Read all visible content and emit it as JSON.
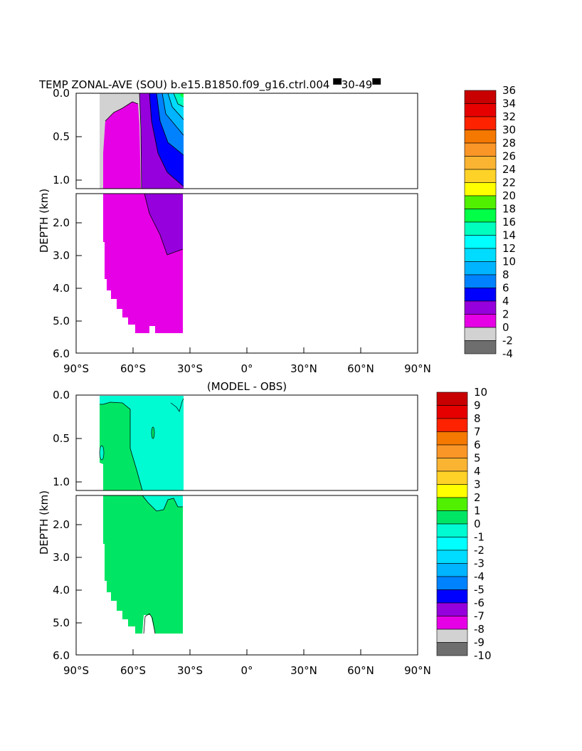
{
  "chart_data": [
    {
      "type": "heatmap",
      "title": "TEMP ZONAL-AVE (SOU) b.e15.B1850.f09_g16.ctrl.004 ▀30-49▀",
      "ylabel": "DEPTH (km)",
      "xlabel": "",
      "x_ticks": [
        "90°S",
        "60°S",
        "30°S",
        "0°",
        "30°N",
        "60°N",
        "90°N"
      ],
      "y_ticks_upper": [
        "0.0",
        "0.5",
        "1.0"
      ],
      "y_ticks_lower": [
        "2.0",
        "3.0",
        "4.0",
        "5.0",
        "6.0"
      ],
      "xlim": [
        -90,
        90
      ],
      "ylim_km": [
        0,
        6
      ],
      "upper_panel_depth_km": [
        0,
        1.1
      ],
      "lower_panel_depth_km": [
        1.1,
        6
      ],
      "colorbar": {
        "labels": [
          "36",
          "34",
          "32",
          "30",
          "28",
          "26",
          "24",
          "22",
          "20",
          "18",
          "16",
          "14",
          "12",
          "10",
          "8",
          "6",
          "4",
          "2",
          "0",
          "-2",
          "-4"
        ],
        "colors": [
          "#c80000",
          "#e60000",
          "#ff2200",
          "#f57800",
          "#fa9628",
          "#fab432",
          "#ffd228",
          "#ffff00",
          "#50f000",
          "#00ff46",
          "#00ffbe",
          "#00ffff",
          "#00dcff",
          "#00b4ff",
          "#0082ff",
          "#0000ff",
          "#9600dc",
          "#e600e6",
          "#d2d2d2",
          "#6e6e6e"
        ]
      },
      "data_extent": {
        "lon_min": -75,
        "lon_max": -34
      }
    },
    {
      "type": "heatmap",
      "title": "(MODEL - OBS)",
      "ylabel": "DEPTH (km)",
      "xlabel": "",
      "x_ticks": [
        "90°S",
        "60°S",
        "30°S",
        "0°",
        "30°N",
        "60°N",
        "90°N"
      ],
      "y_ticks_upper": [
        "0.0",
        "0.5",
        "1.0"
      ],
      "y_ticks_lower": [
        "2.0",
        "3.0",
        "4.0",
        "5.0",
        "6.0"
      ],
      "xlim": [
        -90,
        90
      ],
      "ylim_km": [
        0,
        6
      ],
      "colorbar": {
        "labels": [
          "10",
          "9",
          "8",
          "7",
          "6",
          "5",
          "4",
          "3",
          "2",
          "1",
          "0",
          "-1",
          "-2",
          "-3",
          "-4",
          "-5",
          "-6",
          "-7",
          "-8",
          "-9",
          "-10"
        ],
        "colors": [
          "#c80000",
          "#e60000",
          "#ff2200",
          "#f57800",
          "#fa9628",
          "#fab432",
          "#ffd228",
          "#ffff00",
          "#50f000",
          "#00e664",
          "#00fad2",
          "#00ffff",
          "#00dcff",
          "#00b4ff",
          "#0082ff",
          "#0000ff",
          "#9600dc",
          "#e600e6",
          "#d2d2d2",
          "#6e6e6e"
        ]
      },
      "data_extent": {
        "lon_min": -75,
        "lon_max": -34
      }
    }
  ]
}
